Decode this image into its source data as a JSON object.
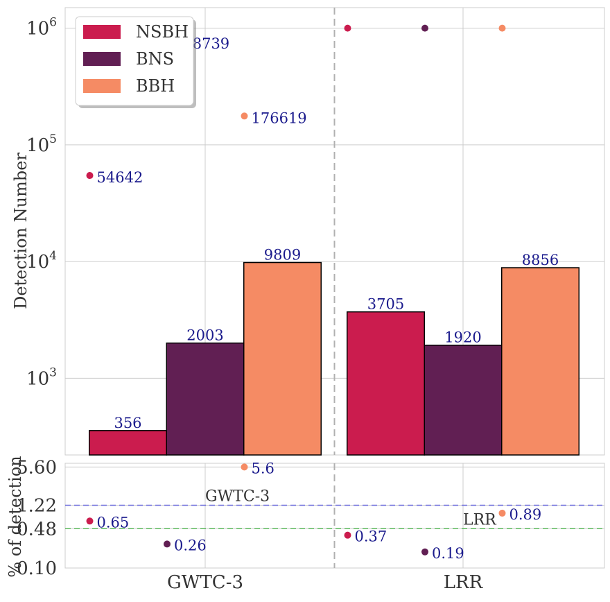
{
  "chart_data": [
    {
      "type": "bar",
      "categories": [
        "GWTC-3",
        "LRR"
      ],
      "series": [
        {
          "name": "NSBH",
          "color": "#cb1c4e",
          "values": [
            356,
            3705
          ],
          "points": [
            54642,
            1000000
          ],
          "point_labels": [
            "54642",
            ""
          ]
        },
        {
          "name": "BNS",
          "color": "#611f53",
          "values": [
            2003,
            1920
          ],
          "points": [
            768739,
            1000000
          ],
          "point_labels": [
            "768739",
            ""
          ]
        },
        {
          "name": "BBH",
          "color": "#f58b64",
          "values": [
            9809,
            8856
          ],
          "points": [
            176619,
            1000000
          ],
          "point_labels": [
            "176619",
            ""
          ]
        }
      ],
      "bar_labels": [
        [
          "356",
          "3705"
        ],
        [
          "2003",
          "1920"
        ],
        [
          "9809",
          "8856"
        ]
      ],
      "ylabel": "Detection Number",
      "yscale": "log",
      "ylim": [
        220,
        1500000
      ],
      "yticks": [
        {
          "base": "10",
          "exp": "3",
          "value": 1000
        },
        {
          "base": "10",
          "exp": "4",
          "value": 10000
        },
        {
          "base": "10",
          "exp": "5",
          "value": 100000
        },
        {
          "base": "10",
          "exp": "6",
          "value": 1000000
        }
      ],
      "legend_position": "upper-left",
      "grid": true
    },
    {
      "type": "scatter",
      "categories": [
        "GWTC-3",
        "LRR"
      ],
      "series": [
        {
          "name": "NSBH",
          "color": "#cb1c4e",
          "values": [
            0.65,
            0.37
          ],
          "labels": [
            "0.65",
            "0.37"
          ]
        },
        {
          "name": "BNS",
          "color": "#611f53",
          "values": [
            0.26,
            0.19
          ],
          "labels": [
            "0.26",
            "0.19"
          ]
        },
        {
          "name": "BBH",
          "color": "#f58b64",
          "values": [
            5.6,
            0.89
          ],
          "labels": [
            "5.6",
            "0.89"
          ]
        }
      ],
      "ylabel": "% of detection",
      "yscale": "log",
      "ylim": [
        0.1,
        6.5
      ],
      "yticks": [
        "0.10",
        "0.48",
        "1.22",
        "5.60"
      ],
      "reference_lines": [
        {
          "label": "GWTC-3",
          "value": 1.22,
          "color": "#6b6bdc"
        },
        {
          "label": "LRR",
          "value": 0.48,
          "color": "#5cb85c"
        }
      ],
      "grid": true
    }
  ]
}
